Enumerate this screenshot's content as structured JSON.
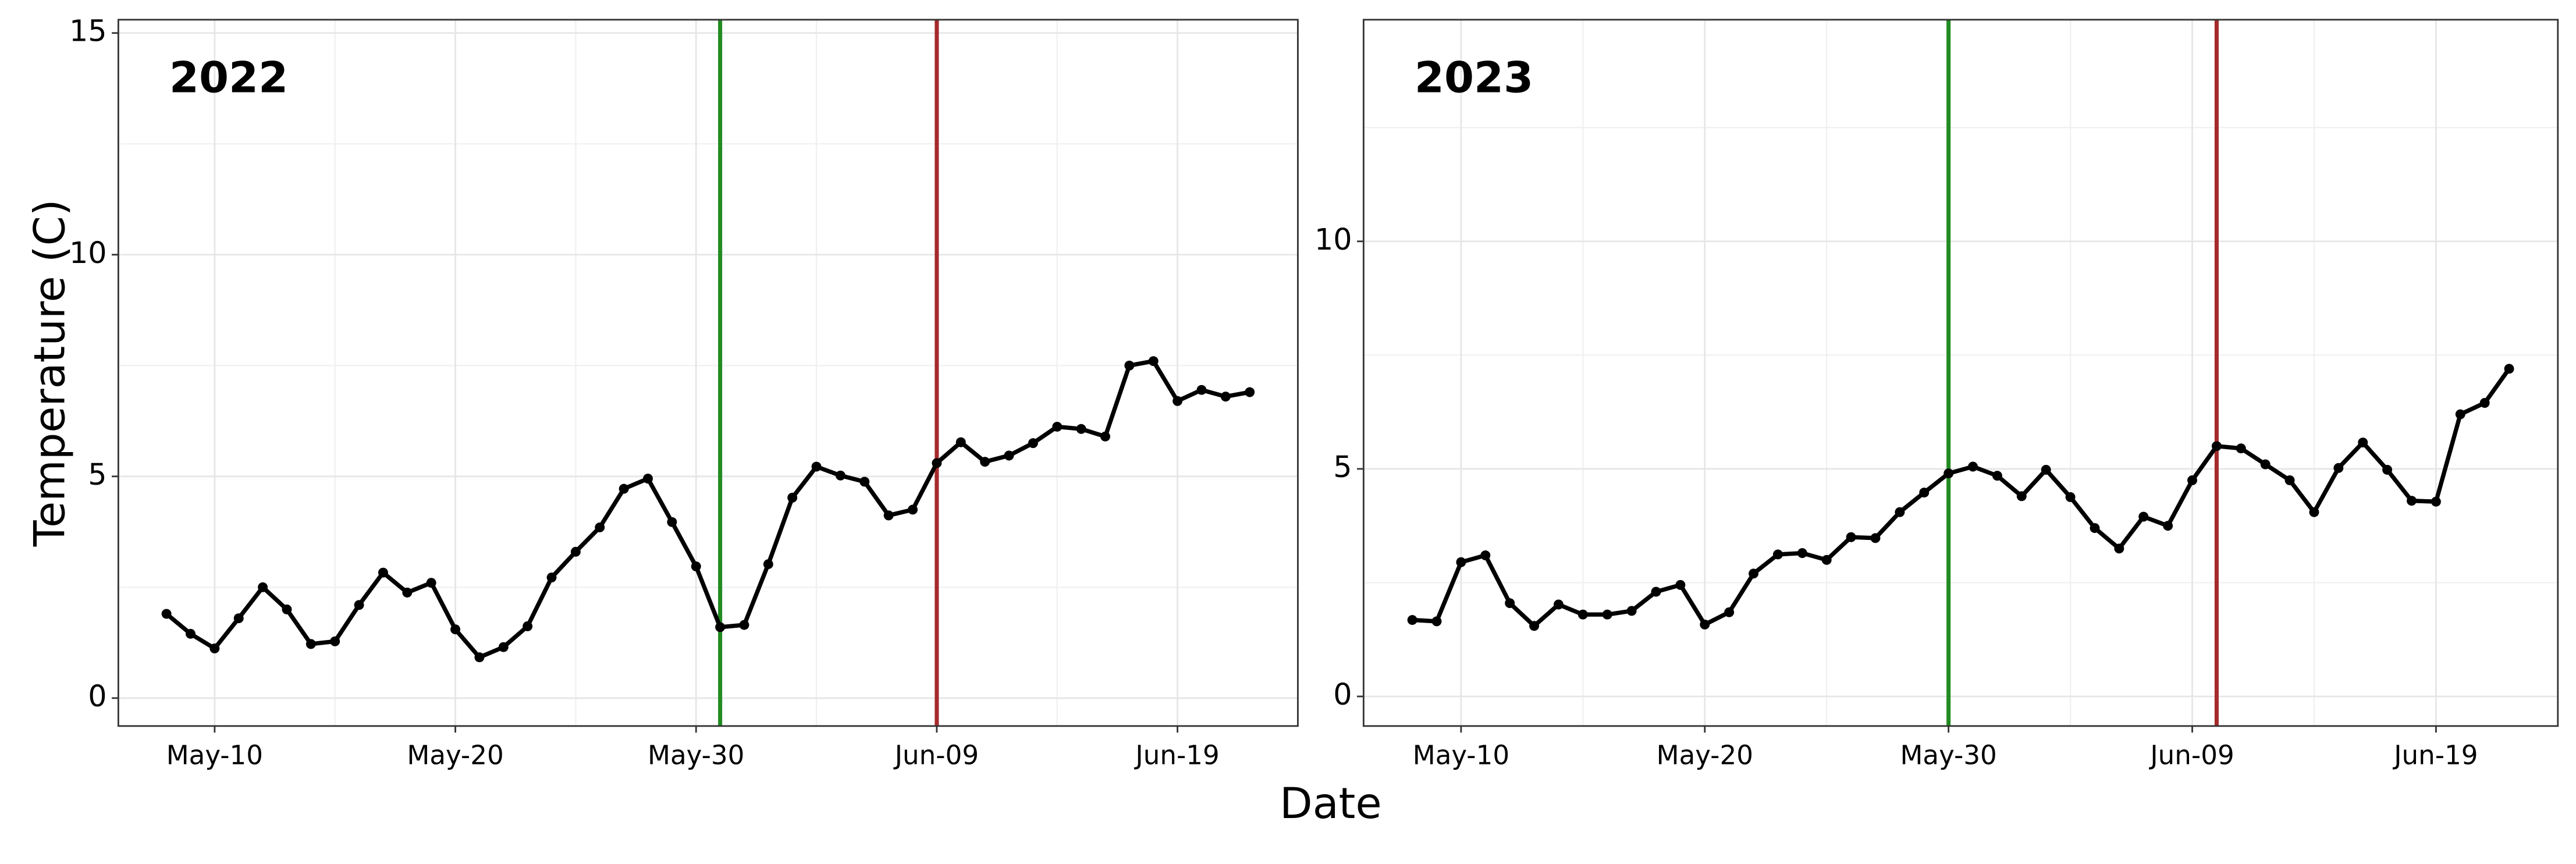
{
  "ylabel": "Temperature (C)",
  "xlabel": "Date",
  "chart_data": [
    {
      "type": "line",
      "title": "2022",
      "x": [
        "May-08",
        "May-09",
        "May-10",
        "May-11",
        "May-12",
        "May-13",
        "May-14",
        "May-15",
        "May-16",
        "May-17",
        "May-18",
        "May-19",
        "May-20",
        "May-21",
        "May-22",
        "May-23",
        "May-24",
        "May-25",
        "May-26",
        "May-27",
        "May-28",
        "May-29",
        "May-30",
        "May-31",
        "Jun-01",
        "Jun-02",
        "Jun-03",
        "Jun-04",
        "Jun-05",
        "Jun-06",
        "Jun-07",
        "Jun-08",
        "Jun-09",
        "Jun-10",
        "Jun-11",
        "Jun-12",
        "Jun-13",
        "Jun-14",
        "Jun-15",
        "Jun-16",
        "Jun-17",
        "Jun-18",
        "Jun-19",
        "Jun-20",
        "Jun-21",
        "Jun-22"
      ],
      "series": [
        {
          "color": "#000000",
          "values": [
            1.9,
            1.45,
            1.12,
            1.8,
            2.5,
            2.0,
            1.22,
            1.28,
            2.1,
            2.83,
            2.38,
            2.6,
            1.55,
            0.92,
            1.15,
            1.62,
            2.72,
            3.3,
            3.85,
            4.72,
            4.95,
            3.97,
            2.97,
            1.6,
            1.65,
            3.02,
            4.52,
            5.22,
            5.02,
            4.88,
            4.12,
            4.25,
            5.3,
            5.77,
            5.33,
            5.47,
            5.75,
            6.12,
            6.07,
            5.9,
            7.5,
            7.6,
            6.7,
            6.95,
            6.8,
            6.9
          ]
        }
      ],
      "vlines": [
        {
          "x": "May-31",
          "color": "#228b22"
        },
        {
          "x": "Jun-09",
          "color": "#a52a2a"
        }
      ],
      "xlim": [
        "May-06",
        "Jun-24"
      ],
      "xticks": [
        "May-10",
        "May-20",
        "May-30",
        "Jun-09",
        "Jun-19"
      ],
      "ylim": [
        -0.63,
        15.3
      ],
      "yticks": [
        0,
        5,
        10,
        15
      ],
      "grid": true
    },
    {
      "type": "line",
      "title": "2023",
      "x": [
        "May-08",
        "May-09",
        "May-10",
        "May-11",
        "May-12",
        "May-13",
        "May-14",
        "May-15",
        "May-16",
        "May-17",
        "May-18",
        "May-19",
        "May-20",
        "May-21",
        "May-22",
        "May-23",
        "May-24",
        "May-25",
        "May-26",
        "May-27",
        "May-28",
        "May-29",
        "May-30",
        "May-31",
        "Jun-01",
        "Jun-02",
        "Jun-03",
        "Jun-04",
        "Jun-05",
        "Jun-06",
        "Jun-07",
        "Jun-08",
        "Jun-09",
        "Jun-10",
        "Jun-11",
        "Jun-12",
        "Jun-13",
        "Jun-14",
        "Jun-15",
        "Jun-16",
        "Jun-17",
        "Jun-18",
        "Jun-19",
        "Jun-20",
        "Jun-21",
        "Jun-22"
      ],
      "series": [
        {
          "color": "#000000",
          "values": [
            1.68,
            1.65,
            2.95,
            3.1,
            2.05,
            1.55,
            2.02,
            1.8,
            1.8,
            1.88,
            2.3,
            2.45,
            1.58,
            1.85,
            2.7,
            3.12,
            3.15,
            3.0,
            3.5,
            3.48,
            4.05,
            4.48,
            4.9,
            5.05,
            4.85,
            4.4,
            4.98,
            4.38,
            3.7,
            3.25,
            3.95,
            3.75,
            4.75,
            5.5,
            5.45,
            5.1,
            4.75,
            4.05,
            5.02,
            5.58,
            4.98,
            4.3,
            4.28,
            6.2,
            6.45,
            7.2
          ]
        }
      ],
      "vlines": [
        {
          "x": "May-30",
          "color": "#228b22"
        },
        {
          "x": "Jun-10",
          "color": "#a52a2a"
        }
      ],
      "xlim": [
        "May-06",
        "Jun-24"
      ],
      "xticks": [
        "May-10",
        "May-20",
        "May-30",
        "Jun-09",
        "Jun-19"
      ],
      "ylim": [
        -0.65,
        14.87
      ],
      "yticks": [
        0,
        5,
        10
      ],
      "grid": true
    }
  ]
}
